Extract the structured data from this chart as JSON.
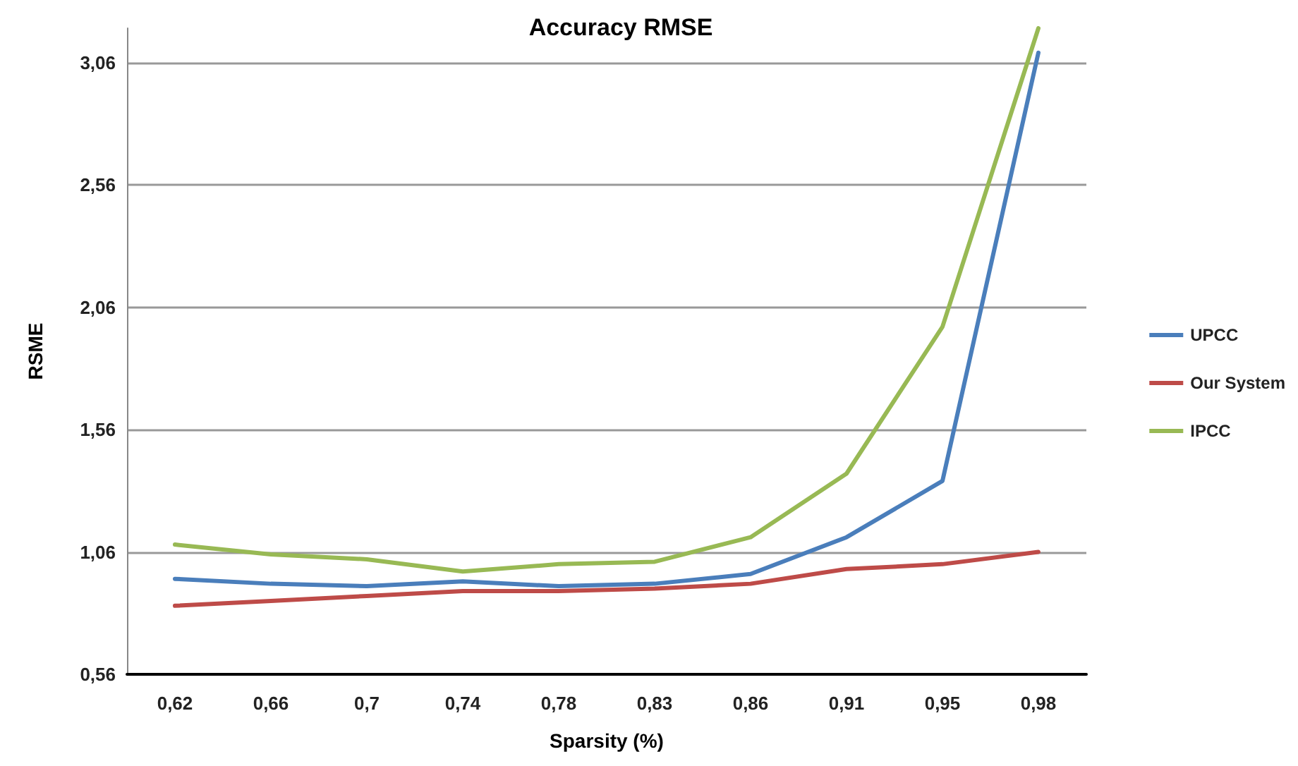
{
  "chart_data": {
    "type": "line",
    "title": "Accuracy RMSE",
    "xlabel": "Sparsity (%)",
    "ylabel": "RSME",
    "categories": [
      "0,62",
      "0,66",
      "0,7",
      "0,74",
      "0,78",
      "0,83",
      "0,86",
      "0,91",
      "0,95",
      "0,98"
    ],
    "series": [
      {
        "name": "UPCC",
        "color": "#4a7ebb",
        "values": [
          0.95,
          0.93,
          0.92,
          0.94,
          0.92,
          0.93,
          0.97,
          1.12,
          1.35,
          3.1
        ]
      },
      {
        "name": "Our System",
        "color": "#be4b48",
        "values": [
          0.84,
          0.86,
          0.88,
          0.9,
          0.9,
          0.91,
          0.93,
          0.99,
          1.01,
          1.06
        ]
      },
      {
        "name": "IPCC",
        "color": "#98b954",
        "values": [
          1.09,
          1.05,
          1.03,
          0.98,
          1.01,
          1.02,
          1.12,
          1.38,
          1.98,
          3.2
        ]
      }
    ],
    "ylim": [
      0.56,
      3.2
    ],
    "yticks": [
      {
        "value": 0.56,
        "label": "0,56"
      },
      {
        "value": 1.06,
        "label": "1,06"
      },
      {
        "value": 1.56,
        "label": "1,56"
      },
      {
        "value": 2.06,
        "label": "2,06"
      },
      {
        "value": 2.56,
        "label": "2,56"
      },
      {
        "value": 3.06,
        "label": "3,06"
      }
    ],
    "grid": "y",
    "legend": "right",
    "marker": "none",
    "line_style": "solid"
  }
}
